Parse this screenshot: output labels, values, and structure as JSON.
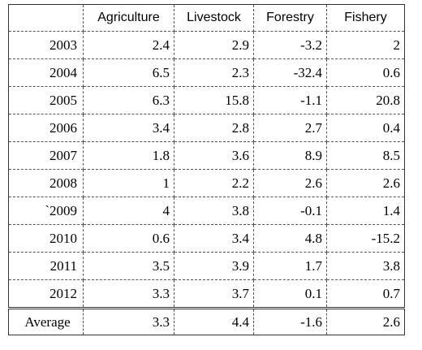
{
  "table": {
    "headers": [
      "",
      "Agriculture",
      "Livestock",
      "Forestry",
      "Fishery"
    ],
    "rows": [
      {
        "year": "2003",
        "values": [
          "2.4",
          "2.9",
          "-3.2",
          "2"
        ]
      },
      {
        "year": "2004",
        "values": [
          "6.5",
          "2.3",
          "-32.4",
          "0.6"
        ]
      },
      {
        "year": "2005",
        "values": [
          "6.3",
          "15.8",
          "-1.1",
          "20.8"
        ]
      },
      {
        "year": "2006",
        "values": [
          "3.4",
          "2.8",
          "2.7",
          "0.4"
        ]
      },
      {
        "year": "2007",
        "values": [
          "1.8",
          "3.6",
          "8.9",
          "8.5"
        ]
      },
      {
        "year": "2008",
        "values": [
          "1",
          "2.2",
          "2.6",
          "2.6"
        ]
      },
      {
        "year": "`2009",
        "values": [
          "4",
          "3.8",
          "-0.1",
          "1.4"
        ]
      },
      {
        "year": "2010",
        "values": [
          "0.6",
          "3.4",
          "4.8",
          "-15.2"
        ]
      },
      {
        "year": "2011",
        "values": [
          "3.5",
          "3.9",
          "1.7",
          "3.8"
        ]
      },
      {
        "year": "2012",
        "values": [
          "3.3",
          "3.7",
          "0.1",
          "0.7"
        ]
      }
    ],
    "average": {
      "label": "Average",
      "values": [
        "3.3",
        "4.4",
        "-1.6",
        "2.6"
      ]
    }
  }
}
